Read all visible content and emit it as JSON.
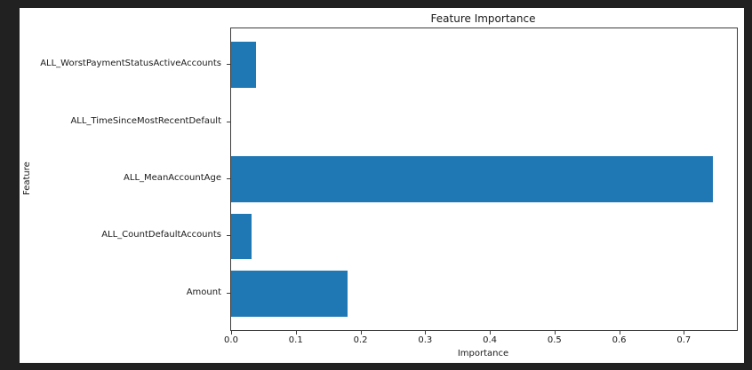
{
  "window": {
    "frame_background": "#212121",
    "figure_background": "#ffffff",
    "spine_color": "#3d3d3d",
    "text_color": "#1a1a1a"
  },
  "chart_data": {
    "type": "bar",
    "orientation": "horizontal",
    "title": "Feature Importance",
    "xlabel": "Importance",
    "ylabel": "Feature",
    "categories": [
      "ALL_WorstPaymentStatusActiveAccounts",
      "ALL_TimeSinceMostRecentDefault",
      "ALL_MeanAccountAge",
      "ALL_CountDefaultAccounts",
      "Amount"
    ],
    "values": [
      0.039,
      0.0,
      0.745,
      0.031,
      0.18
    ],
    "bar_color": "#1f77b4",
    "xlim": [
      0.0,
      0.782
    ],
    "xticks": [
      0.0,
      0.1,
      0.2,
      0.3,
      0.4,
      0.5,
      0.6,
      0.7
    ],
    "grid": false,
    "legend": null
  }
}
